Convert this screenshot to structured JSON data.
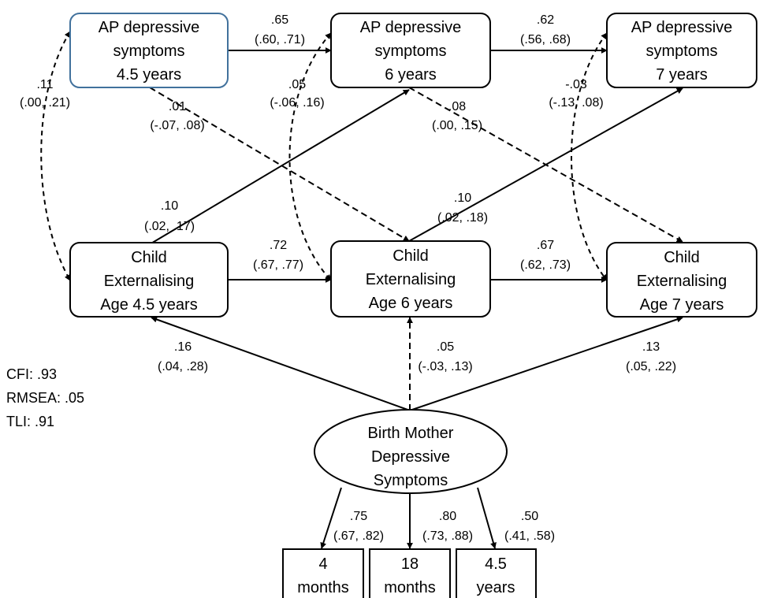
{
  "nodes": {
    "ap45": [
      "AP depressive",
      "symptoms",
      "4.5 years"
    ],
    "ap6": [
      "AP depressive",
      "symptoms",
      "6 years"
    ],
    "ap7": [
      "AP depressive",
      "symptoms",
      "7 years"
    ],
    "ce45": [
      "Child",
      "Externalising",
      "Age 4.5 years"
    ],
    "ce6": [
      "Child",
      "Externalising",
      "Age 6 years"
    ],
    "ce7": [
      "Child",
      "Externalising",
      "Age 7 years"
    ],
    "bm": [
      "Birth Mother",
      "Depressive",
      "Symptoms"
    ],
    "ind4m": [
      "4",
      "months"
    ],
    "ind18m": [
      "18",
      "months"
    ],
    "ind45y": [
      "4.5",
      "years"
    ]
  },
  "paths": {
    "ap45_ap6": [
      ".65",
      "(.60, .71)"
    ],
    "ap6_ap7": [
      ".62",
      "(.56, .68)"
    ],
    "ce45_ce6": [
      ".72",
      "(.67, .77)"
    ],
    "ce6_ce7": [
      ".67",
      "(.62, .73)"
    ],
    "cov45": [
      ".11",
      "(.00, .21)"
    ],
    "cov6": [
      ".05",
      "(-.06, .16)"
    ],
    "cov7": [
      "-.03",
      "(-.13, .08)"
    ],
    "ap45_ce6": [
      ".01",
      "(-.07, .08)"
    ],
    "ap6_ce7": [
      ".08",
      "(.00, .15)"
    ],
    "ce45_ap6": [
      ".10",
      "(.02, .17)"
    ],
    "ce6_ap7": [
      ".10",
      "(.02, .18)"
    ],
    "bm_ce45": [
      ".16",
      "(.04, .28)"
    ],
    "bm_ce6": [
      ".05",
      "(-.03, .13)"
    ],
    "bm_ce7": [
      ".13",
      "(.05, .22)"
    ],
    "load_4m": [
      ".75",
      "(.67, .82)"
    ],
    "load_18m": [
      ".80",
      "(.73, .88)"
    ],
    "load_45y": [
      ".50",
      "(.41, .58)"
    ]
  },
  "fit": {
    "cfi": "CFI: .93",
    "rmsea": "RMSEA: .05",
    "tli": "TLI: .91"
  },
  "colors": {
    "highlight_border": "#41719c",
    "line": "#000000",
    "faded_line": "#a6a6a6"
  }
}
